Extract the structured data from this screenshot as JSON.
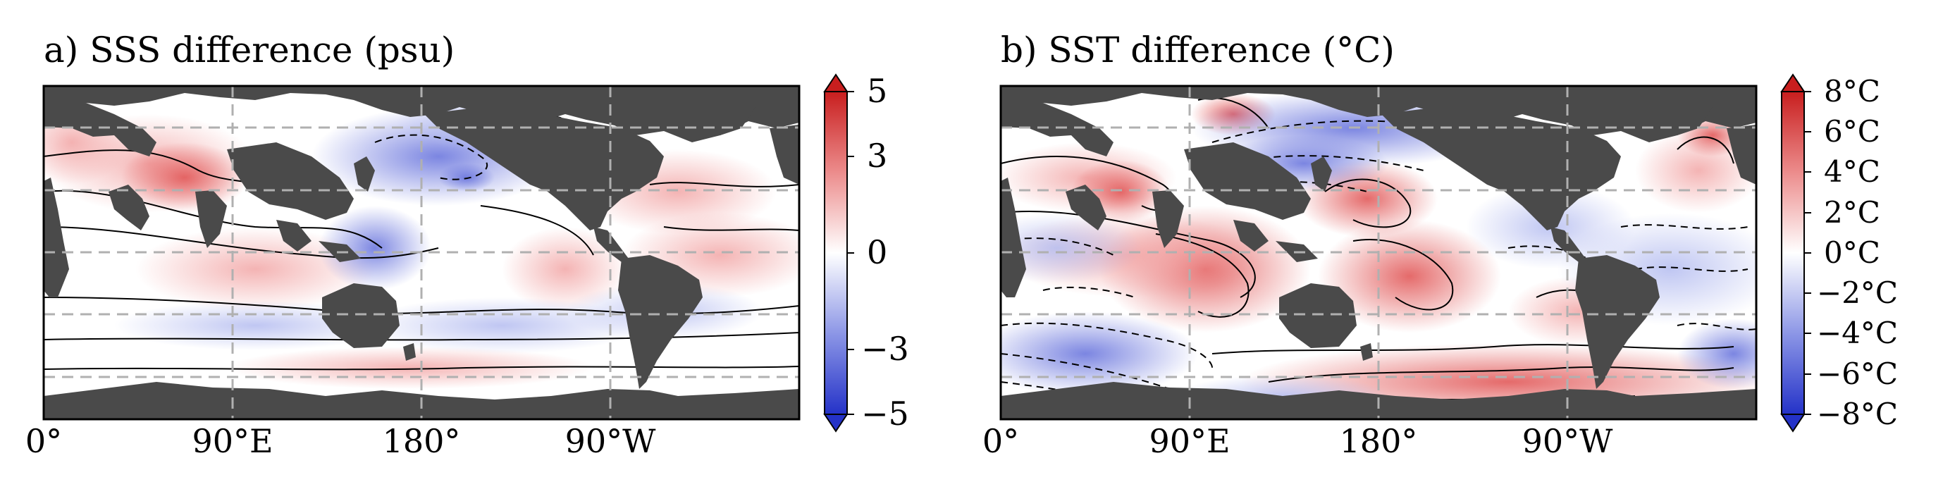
{
  "panels": [
    {
      "title": "a) SSS difference (psu)",
      "x_ticks": [
        "0°",
        "90°E",
        "180°",
        "90°W"
      ],
      "colorbar": {
        "ticks": [
          "5",
          "3",
          "0",
          "−3",
          "−5"
        ],
        "values": [
          5,
          3,
          0,
          -3,
          -5
        ],
        "range": [
          -5,
          5
        ],
        "extend": "both",
        "colors": {
          "low": "#2432c8",
          "mid": "#ffffff",
          "high": "#c81e1e"
        }
      }
    },
    {
      "title": "b) SST difference (°C)",
      "x_ticks": [
        "0°",
        "90°E",
        "180°",
        "90°W"
      ],
      "colorbar": {
        "ticks": [
          "8°C",
          "6°C",
          "4°C",
          "2°C",
          "0°C",
          "−2°C",
          "−4°C",
          "−6°C",
          "−8°C"
        ],
        "values": [
          8,
          6,
          4,
          2,
          0,
          -2,
          -4,
          -6,
          -8
        ],
        "range": [
          -8,
          8
        ],
        "extend": "both",
        "colors": {
          "low": "#2432c8",
          "mid": "#ffffff",
          "high": "#c81e1e"
        }
      }
    }
  ],
  "style": {
    "land_color": "#4a4a4a",
    "grid": "dashed gray",
    "contour_color": "#000000"
  }
}
